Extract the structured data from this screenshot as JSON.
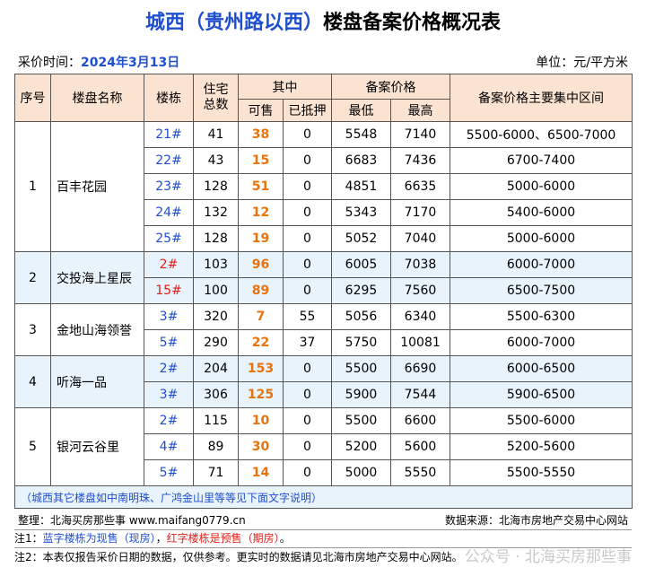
{
  "title": {
    "part1": "城西（贵州路以西）",
    "part2": "楼盘备案价格概况表"
  },
  "meta": {
    "date_label": "采价时间：",
    "date_value": "2024年3月13日",
    "unit": "单位：元/平方米"
  },
  "headers": {
    "seq": "序号",
    "name": "楼盘名称",
    "building": "楼栋",
    "total": "住宅\n总数",
    "qizhong": "其中",
    "avail": "可售",
    "mortgaged": "已抵押",
    "record_price": "备案价格",
    "low": "最低",
    "high": "最高",
    "range": "备案价格主要集中区间"
  },
  "projects": [
    {
      "seq": "1",
      "name": "百丰花园",
      "rows": [
        {
          "building": "21#",
          "total": "41",
          "avail": "38",
          "mortgaged": "0",
          "low": "5548",
          "high": "7140",
          "range": "5500-6000、6500-7000"
        },
        {
          "building": "22#",
          "total": "43",
          "avail": "15",
          "mortgaged": "0",
          "low": "6683",
          "high": "7436",
          "range": "6700-7400"
        },
        {
          "building": "23#",
          "total": "128",
          "avail": "51",
          "mortgaged": "0",
          "low": "4851",
          "high": "6635",
          "range": "5000-6000"
        },
        {
          "building": "24#",
          "total": "132",
          "avail": "12",
          "mortgaged": "0",
          "low": "5343",
          "high": "7170",
          "range": "5400-6000"
        },
        {
          "building": "25#",
          "total": "128",
          "avail": "19",
          "mortgaged": "0",
          "low": "5052",
          "high": "7040",
          "range": "5000-6000"
        }
      ]
    },
    {
      "seq": "2",
      "name": "交投海上星辰",
      "rows": [
        {
          "building": "2#",
          "total": "103",
          "avail": "96",
          "mortgaged": "0",
          "low": "6005",
          "high": "7038",
          "range": "6000-7000"
        },
        {
          "building": "15#",
          "total": "100",
          "avail": "89",
          "mortgaged": "0",
          "low": "6295",
          "high": "7560",
          "range": "6500-7500"
        }
      ]
    },
    {
      "seq": "3",
      "name": "金地山海领誉",
      "rows": [
        {
          "building": "3#",
          "total": "320",
          "avail": "7",
          "mortgaged": "55",
          "low": "5056",
          "high": "6340",
          "range": "5500-6300"
        },
        {
          "building": "5#",
          "total": "290",
          "avail": "22",
          "mortgaged": "37",
          "low": "5750",
          "high": "10081",
          "range": "6000-7000"
        }
      ]
    },
    {
      "seq": "4",
      "name": "听海一品",
      "rows": [
        {
          "building": "2#",
          "total": "204",
          "avail": "153",
          "mortgaged": "0",
          "low": "5500",
          "high": "6690",
          "range": "6000-6500"
        },
        {
          "building": "3#",
          "total": "306",
          "avail": "125",
          "mortgaged": "0",
          "low": "5900",
          "high": "7544",
          "range": "5900-6500"
        }
      ]
    },
    {
      "seq": "5",
      "name": "银河云谷里",
      "rows": [
        {
          "building": "2#",
          "total": "115",
          "avail": "10",
          "mortgaged": "0",
          "low": "5500",
          "high": "6600",
          "range": "5500-6000"
        },
        {
          "building": "4#",
          "total": "89",
          "avail": "30",
          "mortgaged": "0",
          "low": "5200",
          "high": "5600",
          "range": "5200-5600"
        },
        {
          "building": "5#",
          "total": "71",
          "avail": "14",
          "mortgaged": "0",
          "low": "5000",
          "high": "5550",
          "range": "5500-5550"
        }
      ]
    }
  ],
  "table_note": "（城西其它楼盘如中南明珠、广鸿金山里等等见下面文字说明）",
  "footer": {
    "compiler": "整理：北海买房那些事 www.maifang0779.cn",
    "source": "数据来源：北海市房地产交易中心网站",
    "note1_prefix": "注1：",
    "note1_blue": "蓝字楼栋为现售（现房）",
    "note1_sep": "，",
    "note1_red": "红字楼栋是预售（期房）",
    "note1_end": "。",
    "note2": "注2：本表仅报告采价日期的数据，仅供参考。更实时的数据请见北海市房地产交易中心网站。",
    "watermark": "公众号 · 北海买房那些事"
  },
  "colors": {
    "blue_text": "#1f4fcf",
    "red_text": "#e0201a",
    "orange_text": "#e8730c",
    "header_bg": "#fbe3d2",
    "band_bg": "#e8f3fb"
  },
  "presale_buildings": [
    "2-2#",
    "2-15#"
  ]
}
